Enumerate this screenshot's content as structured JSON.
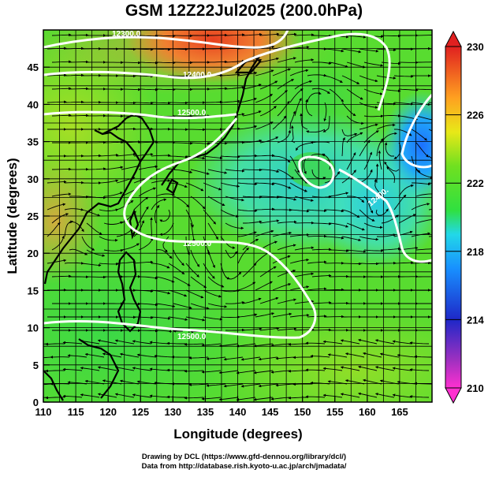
{
  "title": "GSM 12Z22Jul2025 (200.0hPa)",
  "axes": {
    "xlabel": "Longitude (degrees)",
    "ylabel": "Latitude (degrees)",
    "x_ticks": [
      "110",
      "115",
      "120",
      "125",
      "130",
      "135",
      "140",
      "145",
      "150",
      "155",
      "160",
      "165"
    ],
    "y_ticks": [
      "0",
      "5",
      "10",
      "15",
      "20",
      "25",
      "30",
      "35",
      "40",
      "45"
    ],
    "xlim": [
      110,
      170
    ],
    "ylim": [
      0,
      50
    ]
  },
  "colorbar": {
    "ticks": [
      "230",
      "226",
      "222",
      "218",
      "214",
      "210"
    ],
    "range": [
      210,
      230
    ],
    "colors": [
      "#ff2fd0",
      "#c030c0",
      "#2020c8",
      "#1c7cff",
      "#20d8ff",
      "#30e840",
      "#80e020",
      "#f0e010",
      "#ffa020",
      "#ff3020",
      "#d82020"
    ]
  },
  "contours": {
    "labels": [
      "12300.0",
      "12400.0",
      "12500.0",
      "12400.",
      "12500.0",
      "12600.0",
      "12400.",
      "12500.0"
    ],
    "color": "#ffffff"
  },
  "credits": {
    "line1": "Drawing by DCL (https://www.gfd-dennou.org/library/dcl/)",
    "line2": "Data from http://database.rish.kyoto-u.ac.jp/arch/jmadata/"
  }
}
